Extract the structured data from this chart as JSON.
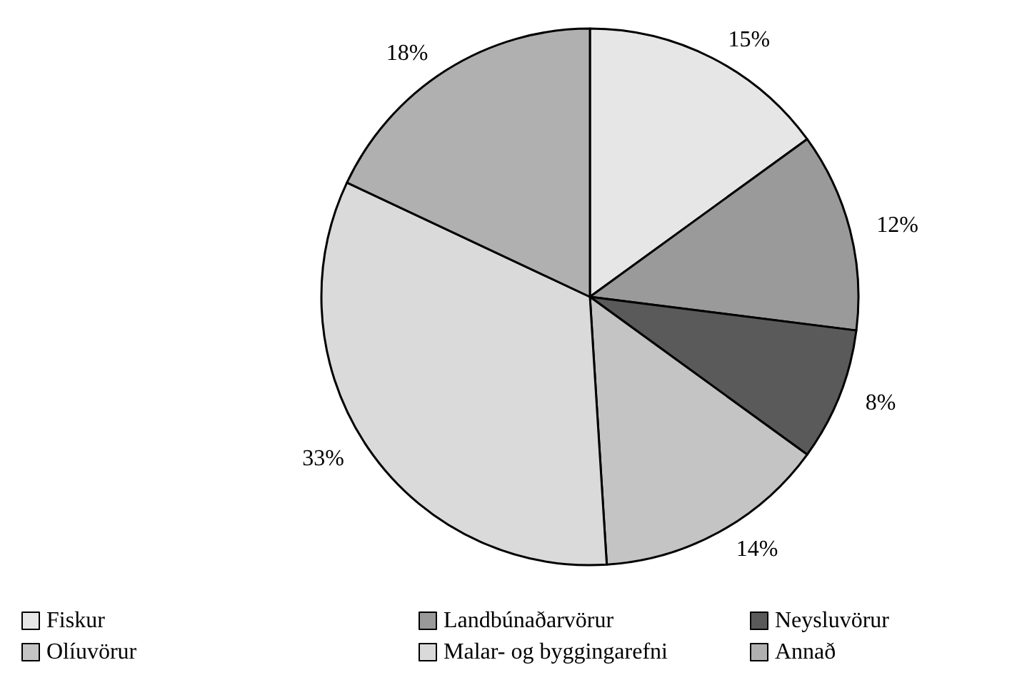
{
  "chart_data": {
    "type": "pie",
    "categories": [
      "Fiskur",
      "Landbúnaðarvörur",
      "Neysluvörur",
      "Olíuvörur",
      "Malar- og byggingarefni",
      "Annað"
    ],
    "values": [
      15,
      12,
      8,
      14,
      33,
      18
    ],
    "value_labels": [
      "15%",
      "12%",
      "8%",
      "14%",
      "33%",
      "18%"
    ],
    "colors": [
      "#e6e6e6",
      "#9a9a9a",
      "#5a5a5a",
      "#c4c4c4",
      "#dadada",
      "#b0b0b0"
    ],
    "legend": "bottom"
  }
}
